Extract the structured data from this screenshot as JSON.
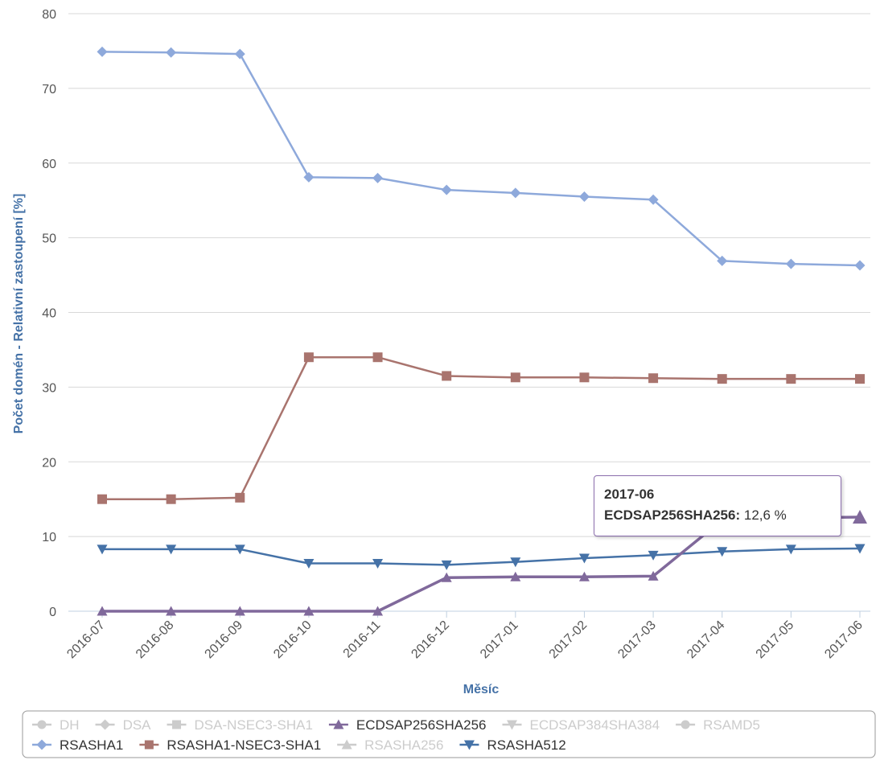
{
  "chart_data": {
    "type": "line",
    "title": "",
    "xlabel": "Měsíc",
    "ylabel": "Počet domén - Relativní zastoupení [%]",
    "ylim": [
      0,
      80
    ],
    "yticks": [
      "0",
      "10",
      "20",
      "30",
      "40",
      "50",
      "60",
      "70",
      "80"
    ],
    "grid": true,
    "legend_position": "bottom",
    "categories": [
      "2016-07",
      "2016-08",
      "2016-09",
      "2016-10",
      "2016-11",
      "2016-12",
      "2017-01",
      "2017-02",
      "2017-03",
      "2017-04",
      "2017-05",
      "2017-06"
    ],
    "series": [
      {
        "name": "RSASHA1",
        "color": "#8EA9DB",
        "marker": "diamond",
        "visible": true,
        "values": [
          74.9,
          74.8,
          74.6,
          58.1,
          58.0,
          56.4,
          56.0,
          55.5,
          55.1,
          46.9,
          46.5,
          46.3
        ]
      },
      {
        "name": "RSASHA1-NSEC3-SHA1",
        "color": "#A9746E",
        "marker": "square",
        "visible": true,
        "values": [
          15.0,
          15.0,
          15.2,
          34.0,
          34.0,
          31.5,
          31.3,
          31.3,
          31.2,
          31.1,
          31.1,
          31.1
        ]
      },
      {
        "name": "RSASHA512",
        "color": "#4572A7",
        "marker": "triangle-down",
        "visible": true,
        "values": [
          8.3,
          8.3,
          8.3,
          6.4,
          6.4,
          6.2,
          6.6,
          7.1,
          7.5,
          8.0,
          8.3,
          8.4
        ]
      },
      {
        "name": "ECDSAP256SHA256",
        "color": "#80699B",
        "marker": "triangle",
        "visible": true,
        "values": [
          0,
          0,
          0,
          0,
          0,
          4.5,
          4.6,
          4.6,
          4.7,
          12.2,
          12.5,
          12.6
        ]
      }
    ],
    "legend": [
      {
        "label": "DH",
        "marker": "circle",
        "active": false
      },
      {
        "label": "DSA",
        "marker": "diamond",
        "active": false
      },
      {
        "label": "DSA-NSEC3-SHA1",
        "marker": "square",
        "active": false
      },
      {
        "label": "ECDSAP256SHA256",
        "marker": "triangle",
        "active": true,
        "color": "#80699B"
      },
      {
        "label": "ECDSAP384SHA384",
        "marker": "triangle-down",
        "active": false
      },
      {
        "label": "RSAMD5",
        "marker": "circle",
        "active": false
      },
      {
        "label": "RSASHA1",
        "marker": "diamond",
        "active": true,
        "color": "#8EA9DB"
      },
      {
        "label": "RSASHA1-NSEC3-SHA1",
        "marker": "square",
        "active": true,
        "color": "#A9746E"
      },
      {
        "label": "RSASHA256",
        "marker": "triangle",
        "active": false
      },
      {
        "label": "RSASHA512",
        "marker": "triangle-down",
        "active": true,
        "color": "#4572A7"
      }
    ],
    "inactive_color": "#CCCCCC",
    "tooltip": {
      "date": "2017-06",
      "series": "ECDSAP256SHA256:",
      "value": "12,6 %"
    }
  }
}
